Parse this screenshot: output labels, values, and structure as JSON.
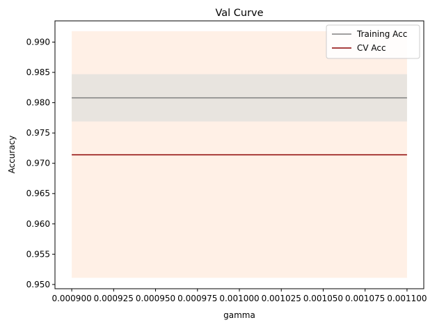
{
  "chart_data": {
    "type": "line",
    "title": "Val Curve",
    "xlabel": "gamma",
    "ylabel": "Accuracy",
    "xlim": [
      0.00089,
      0.00111
    ],
    "ylim": [
      0.9493,
      0.9935
    ],
    "xticks": [
      0.0009,
      0.000925,
      0.00095,
      0.000975,
      0.001,
      0.001025,
      0.00105,
      0.001075,
      0.0011
    ],
    "xtick_labels": [
      "0.000900",
      "0.000925",
      "0.000950",
      "0.000975",
      "0.001000",
      "0.001025",
      "0.001050",
      "0.001075",
      "0.001100"
    ],
    "yticks": [
      0.95,
      0.955,
      0.96,
      0.965,
      0.97,
      0.975,
      0.98,
      0.985,
      0.99
    ],
    "ytick_labels": [
      "0.950",
      "0.955",
      "0.960",
      "0.965",
      "0.970",
      "0.975",
      "0.980",
      "0.985",
      "0.990"
    ],
    "x": [
      0.0009,
      0.0011
    ],
    "series": [
      {
        "name": "Training Acc",
        "values": [
          0.9808,
          0.9808
        ],
        "band": [
          0.9769,
          0.9847
        ],
        "color": "#808080",
        "band_color": "#e8e4df"
      },
      {
        "name": "CV Acc",
        "values": [
          0.9714,
          0.9714
        ],
        "band": [
          0.9511,
          0.9918
        ],
        "color": "#8b0000",
        "band_color": "#fff0e6"
      }
    ],
    "legend_position": "top-right",
    "grid": false
  }
}
